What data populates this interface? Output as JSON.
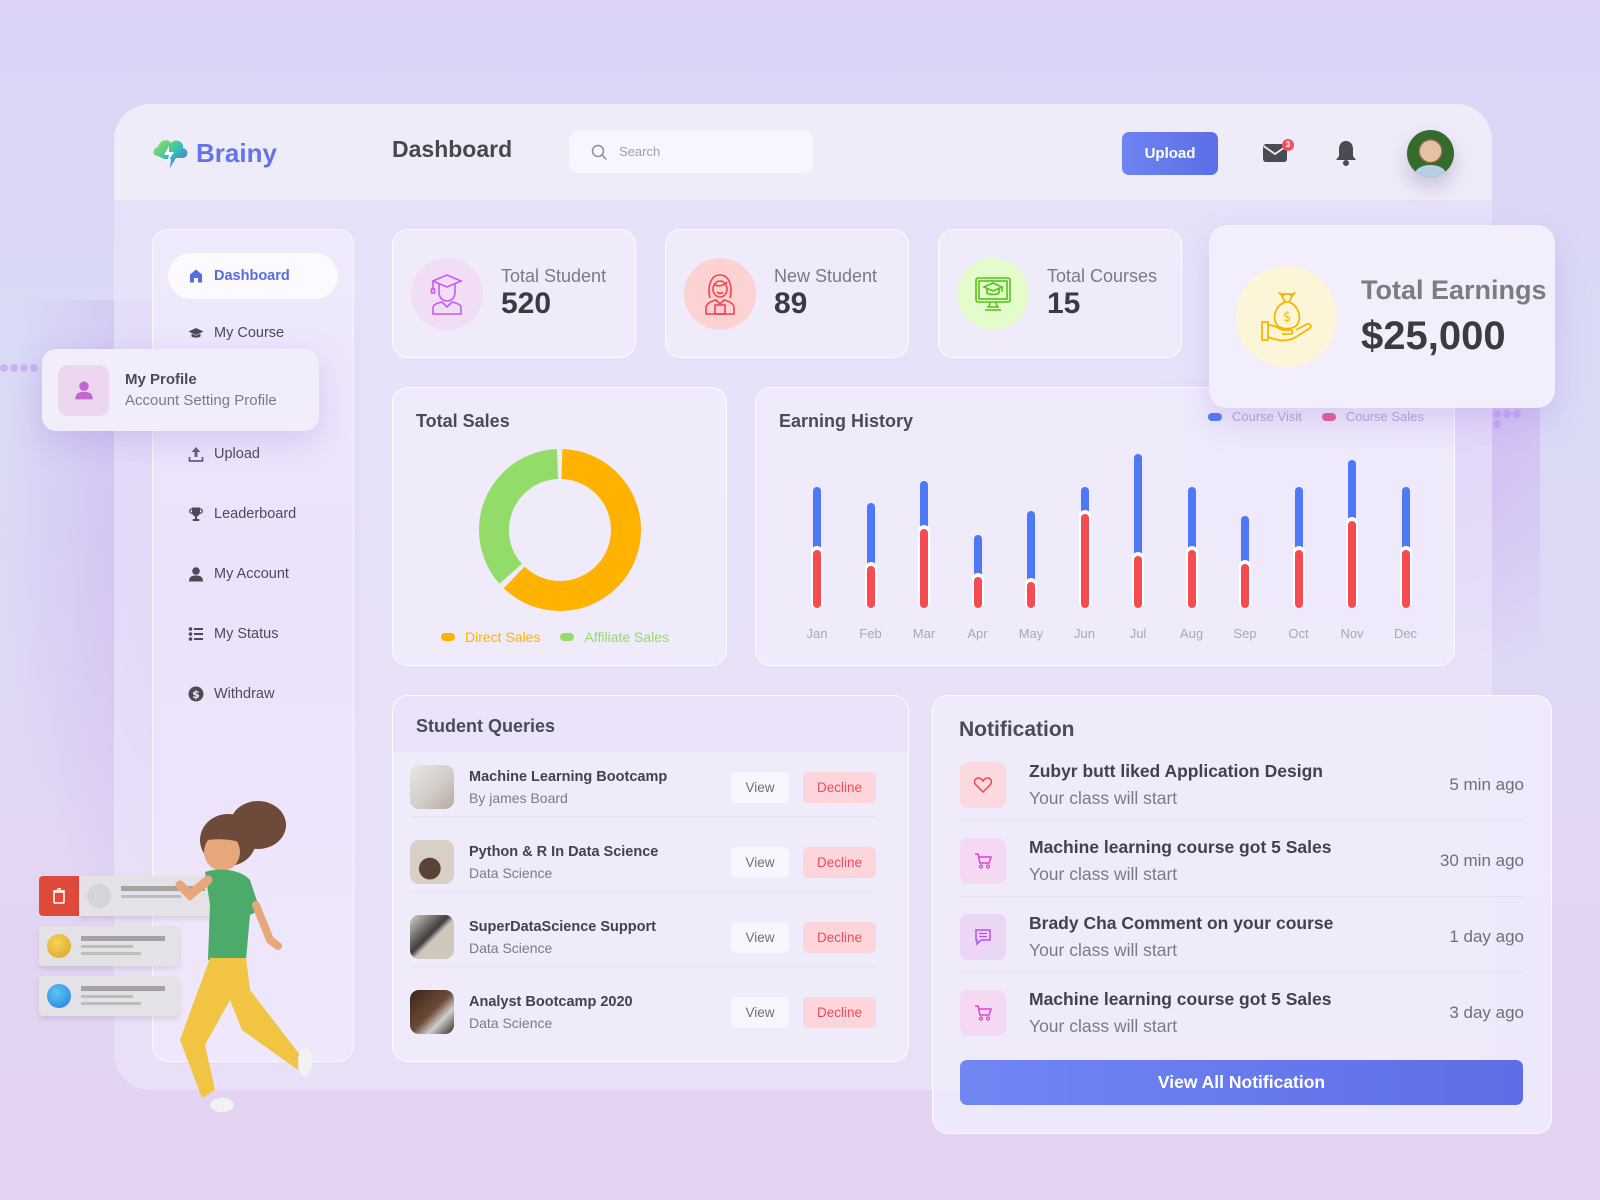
{
  "app": {
    "brand": "Brainy",
    "page_title": "Dashboard"
  },
  "header": {
    "search_placeholder": "Search",
    "upload_label": "Upload",
    "mail_badge_count": "3",
    "icons": [
      "search-icon",
      "mail-icon",
      "bell-icon",
      "avatar"
    ]
  },
  "sidebar": {
    "items": [
      {
        "label": "Dashboard",
        "icon": "home-icon",
        "active": true
      },
      {
        "label": "My Course",
        "icon": "graduation-cap-icon"
      },
      {
        "label": "Upload",
        "icon": "upload-icon"
      },
      {
        "label": "Leaderboard",
        "icon": "trophy-icon"
      },
      {
        "label": "My Account",
        "icon": "user-icon"
      },
      {
        "label": "My Status",
        "icon": "list-icon"
      },
      {
        "label": "Withdraw",
        "icon": "dollar-circle-icon"
      }
    ],
    "profile_popover": {
      "title": "My Profile",
      "subtitle": "Account Setting Profile"
    }
  },
  "stats": [
    {
      "label": "Total Student",
      "value": "520",
      "icon": "graduate-student-icon",
      "color": "#c65cf0",
      "bg": "#f1def5"
    },
    {
      "label": "New Student",
      "value": "89",
      "icon": "student-girl-icon",
      "color": "#f2434e",
      "bg": "#fdd2d2"
    },
    {
      "label": "Total Courses",
      "value": "15",
      "icon": "monitor-course-icon",
      "color": "#52c41a",
      "bg": "#e4fccb"
    },
    {
      "label": "Total Earnings",
      "value": "$25,000",
      "icon": "money-bag-hand-icon",
      "color": "#f5b800",
      "bg": "#fdf5d8"
    }
  ],
  "total_sales": {
    "title": "Total Sales",
    "legend": [
      {
        "label": "Direct Sales",
        "color": "#ffb300"
      },
      {
        "label": "Affiliate Sales",
        "color": "#93dc6a"
      }
    ]
  },
  "earning_history": {
    "title": "Earning History",
    "legend": [
      {
        "label": "Course Visit",
        "color": "#4f78f6"
      },
      {
        "label": "Course Sales",
        "color": "#e85a85"
      }
    ]
  },
  "chart_data": [
    {
      "type": "pie",
      "title": "Total Sales",
      "donut": true,
      "categories": [
        "Direct Sales",
        "Affiliate Sales"
      ],
      "values": [
        63,
        37
      ],
      "colors": [
        "#ffb300",
        "#93dc6a"
      ],
      "legend_position": "bottom"
    },
    {
      "type": "bar",
      "stacked": true,
      "title": "Earning History",
      "categories": [
        "Jan",
        "Feb",
        "Mar",
        "Apr",
        "May",
        "Jun",
        "Jul",
        "Aug",
        "Sep",
        "Oct",
        "Nov",
        "Dec"
      ],
      "series": [
        {
          "name": "Course Sales",
          "color": "#f64b50",
          "values": [
            58,
            42,
            79,
            31,
            26,
            94,
            52,
            58,
            44,
            58,
            87,
            58
          ]
        },
        {
          "name": "Course Visit",
          "color": "#4f78f6",
          "values": [
            63,
            63,
            48,
            42,
            71,
            27,
            102,
            63,
            48,
            63,
            61,
            63
          ]
        }
      ],
      "xlabel": "",
      "ylabel": "",
      "grid": false,
      "legend_position": "top-right"
    }
  ],
  "student_queries": {
    "title": "Student Queries",
    "view_label": "View",
    "decline_label": "Decline",
    "rows": [
      {
        "title": "Machine Learning Bootcamp",
        "subtitle": "By james Board",
        "thumb": "laptop-desk-thumbnail"
      },
      {
        "title": "Python & R In Data Science",
        "subtitle": "Data Science",
        "thumb": "vase-thumbnail"
      },
      {
        "title": "SuperDataScience Support",
        "subtitle": "Data Science",
        "thumb": "keyboard-thumbnail"
      },
      {
        "title": "Analyst Bootcamp 2020",
        "subtitle": "Data Science",
        "thumb": "wooden-desk-thumbnail"
      }
    ]
  },
  "notifications": {
    "title": "Notification",
    "view_all_label": "View All Notification",
    "items": [
      {
        "title": "Zubyr butt liked Application Design",
        "subtitle": "Your class will start",
        "time": "5 min ago",
        "icon": "heart-icon"
      },
      {
        "title": "Machine learning course got 5 Sales",
        "subtitle": "Your class will start",
        "time": "30 min ago",
        "icon": "cart-icon"
      },
      {
        "title": "Brady Cha Comment on your course",
        "subtitle": "Your class will start",
        "time": "1 day ago",
        "icon": "comment-icon"
      },
      {
        "title": "Machine learning course got 5 Sales",
        "subtitle": "Your class will start",
        "time": "3 day ago",
        "icon": "cart-icon"
      }
    ]
  }
}
